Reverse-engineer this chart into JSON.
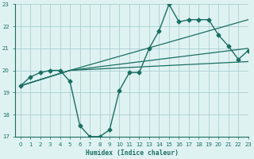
{
  "background_color": "#dff2f2",
  "grid_color": "#aacfcf",
  "line_color": "#1a6e60",
  "xlim": [
    -0.5,
    23
  ],
  "ylim": [
    17,
    23
  ],
  "xlabel": "Humidex (Indice chaleur)",
  "xticks": [
    0,
    1,
    2,
    3,
    4,
    5,
    6,
    7,
    8,
    9,
    10,
    11,
    12,
    13,
    14,
    15,
    16,
    17,
    18,
    19,
    20,
    21,
    22,
    23
  ],
  "yticks": [
    17,
    18,
    19,
    20,
    21,
    22,
    23
  ],
  "main_x": [
    0,
    1,
    2,
    3,
    4,
    5,
    6,
    7,
    8,
    9,
    10,
    11,
    12,
    13,
    14,
    15,
    16,
    17,
    18,
    19,
    20,
    21,
    22,
    23
  ],
  "main_y": [
    19.3,
    19.7,
    19.9,
    20.0,
    20.0,
    19.5,
    17.5,
    17.0,
    17.0,
    17.3,
    19.1,
    19.9,
    19.9,
    21.0,
    21.8,
    23.0,
    22.2,
    22.3,
    22.3,
    22.3,
    21.6,
    21.1,
    20.5,
    20.9
  ],
  "trend1_x": [
    0,
    5,
    23
  ],
  "trend1_y": [
    19.3,
    20.0,
    22.3
  ],
  "trend2_x": [
    0,
    5,
    23
  ],
  "trend2_y": [
    19.3,
    20.0,
    21.0
  ],
  "trend3_x": [
    0,
    5,
    23
  ],
  "trend3_y": [
    19.3,
    20.0,
    20.4
  ],
  "markersize": 2.5,
  "main_lw": 1.0,
  "trend_lw": 0.9
}
